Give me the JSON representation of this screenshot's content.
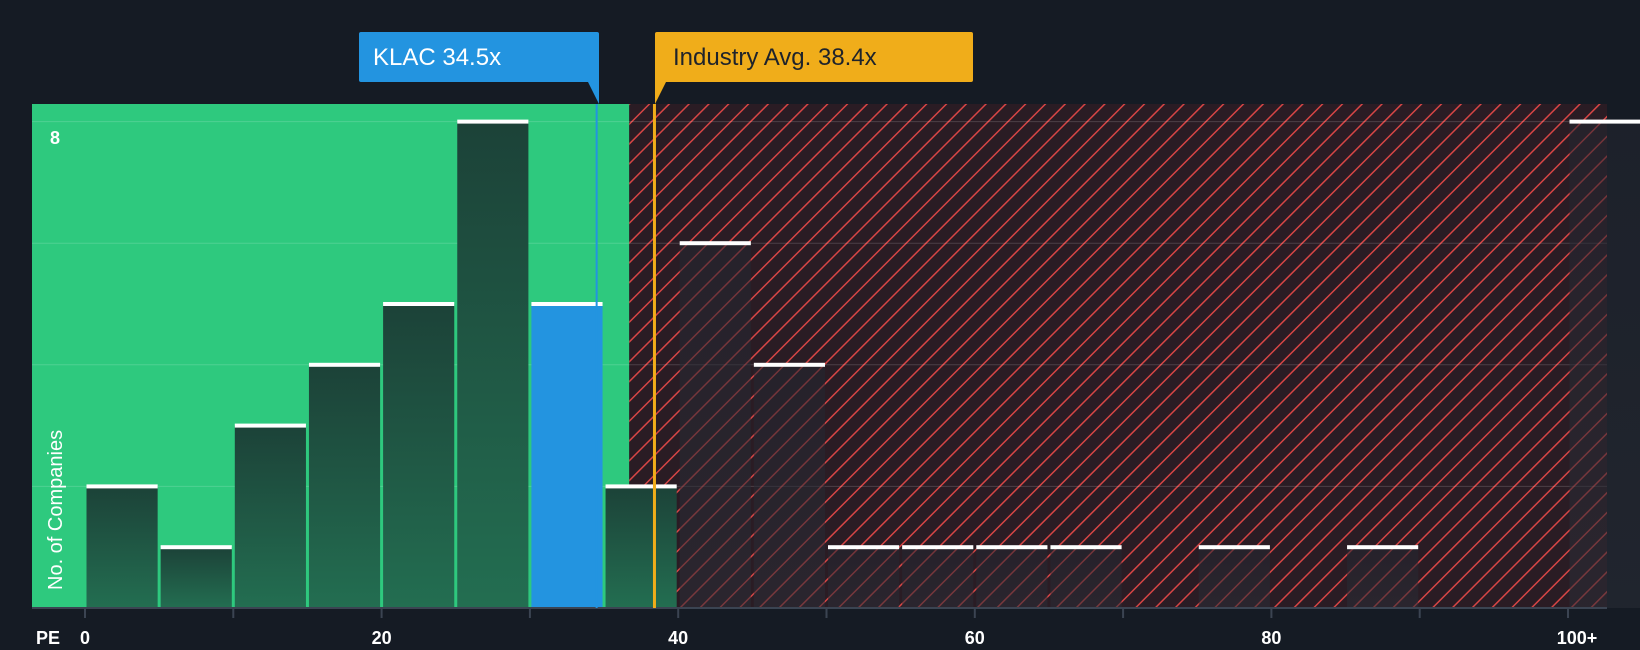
{
  "chart_data": {
    "type": "bar",
    "title": "",
    "xlabel": "PE",
    "ylabel": "No. of Companies",
    "xlim": [
      0,
      102.5
    ],
    "ylim": [
      0,
      8.3
    ],
    "x_ticks": [
      0,
      20,
      40,
      60,
      80,
      100
    ],
    "x_tick_labels": [
      "0",
      "20",
      "40",
      "60",
      "80",
      "100+"
    ],
    "y_tick_labels": [
      {
        "value": 8,
        "label": "8"
      }
    ],
    "gridlines_y": [
      2,
      4,
      6,
      8
    ],
    "bin_width": 5,
    "bins": [
      {
        "x0": 0,
        "value": 2,
        "highlight": false
      },
      {
        "x0": 5,
        "value": 1,
        "highlight": false
      },
      {
        "x0": 10,
        "value": 3,
        "highlight": false
      },
      {
        "x0": 15,
        "value": 4,
        "highlight": false
      },
      {
        "x0": 20,
        "value": 5,
        "highlight": false
      },
      {
        "x0": 25,
        "value": 8,
        "highlight": false
      },
      {
        "x0": 30,
        "value": 5,
        "highlight": true
      },
      {
        "x0": 35,
        "value": 2,
        "highlight": false
      },
      {
        "x0": 40,
        "value": 6,
        "highlight": false
      },
      {
        "x0": 45,
        "value": 4,
        "highlight": false
      },
      {
        "x0": 50,
        "value": 1,
        "highlight": false
      },
      {
        "x0": 55,
        "value": 1,
        "highlight": false
      },
      {
        "x0": 60,
        "value": 1,
        "highlight": false
      },
      {
        "x0": 65,
        "value": 1,
        "highlight": false
      },
      {
        "x0": 75,
        "value": 1,
        "highlight": false
      },
      {
        "x0": 85,
        "value": 1,
        "highlight": false
      },
      {
        "x0": 100,
        "value": 8,
        "highlight": false
      }
    ],
    "fair_zone_max": 36.7,
    "company": {
      "label": "KLAC 34.5x",
      "value": 34.5
    },
    "industry": {
      "label": "Industry Avg. 38.4x",
      "value": 38.4
    }
  },
  "colors": {
    "background": "#151b24",
    "green_zone": "#2ec97e",
    "red_zone": "#2a1c24",
    "hatch": "#d64545",
    "bar": "#1d4a3c",
    "bar_dark": "#262a33",
    "highlight": "#2394e0",
    "industry": "#f0ad1a",
    "cap": "#ffffff"
  }
}
